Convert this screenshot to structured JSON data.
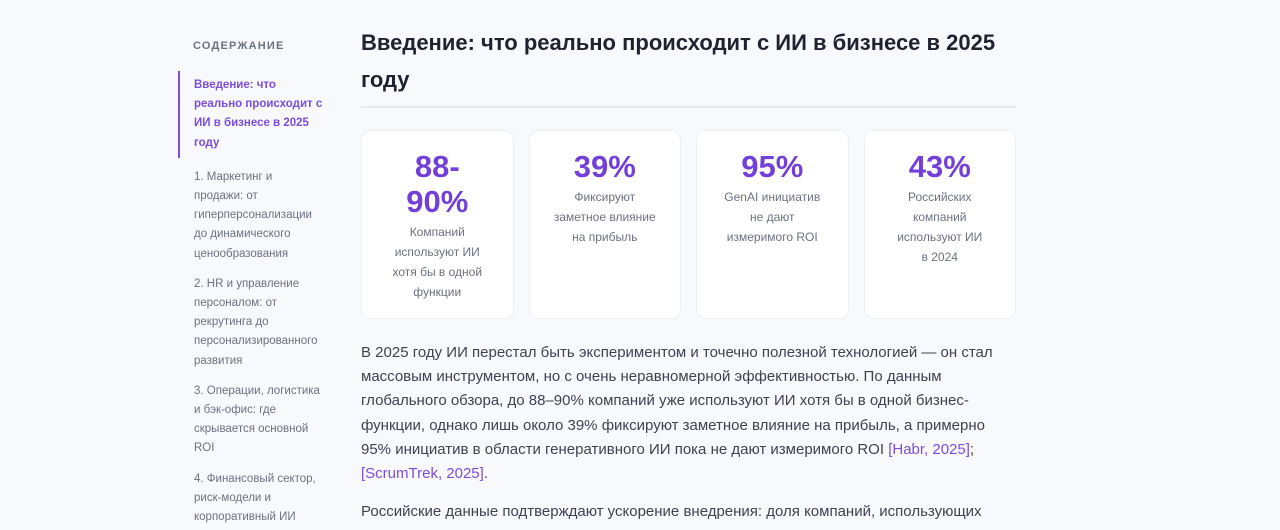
{
  "toc": {
    "title": "Содержание",
    "items": [
      {
        "label": "Введение: что реально происходит с ИИ в бизнесе в 2025 году",
        "active": true
      },
      {
        "label": "1. Маркетинг и продажи: от гиперперсонализации до динамического ценообразования",
        "active": false
      },
      {
        "label": "2. HR и управление персоналом: от рекрутинга до персонализированного развития",
        "active": false
      },
      {
        "label": "3. Операции, логистика и бэк-офис: где скрывается основной ROI",
        "active": false
      },
      {
        "label": "4. Финансовый сектор, риск-модели и корпоративный ИИ",
        "active": false
      }
    ]
  },
  "main": {
    "heading": "Введение: что реально происходит с ИИ в бизнесе в 2025 году",
    "stats": [
      {
        "value": "88-90%",
        "label": "Компаний используют ИИ хотя бы в одной функции"
      },
      {
        "value": "39%",
        "label": "Фиксируют заметное влияние на прибыль"
      },
      {
        "value": "95%",
        "label": "GenAI инициатив не дают измеримого ROI"
      },
      {
        "value": "43%",
        "label": "Российских компаний используют ИИ в 2024"
      }
    ],
    "paragraph1": {
      "text": "В 2025 году ИИ перестал быть экспериментом и точечно полезной технологией — он стал массовым инструментом, но с очень неравномерной эффективностью. По данным глобального обзора, до 88–90% компаний уже используют ИИ хотя бы в одной бизнес-функции, однако лишь около 39% фиксируют заметное влияние на прибыль, а примерно 95% инициатив в области генеративного ИИ пока не дают измеримого ROI ",
      "link1": "[Habr, 2025]",
      "sep": "; ",
      "link2": "[ScrumTrek, 2025]",
      "end": "."
    },
    "paragraph2": {
      "text": "Российские данные подтверждают ускорение внедрения: доля компаний, использующих"
    }
  },
  "colors": {
    "accent": "#7240d9",
    "link": "#7c4ddc",
    "background": "#f8f9fc",
    "card": "#ffffff"
  }
}
